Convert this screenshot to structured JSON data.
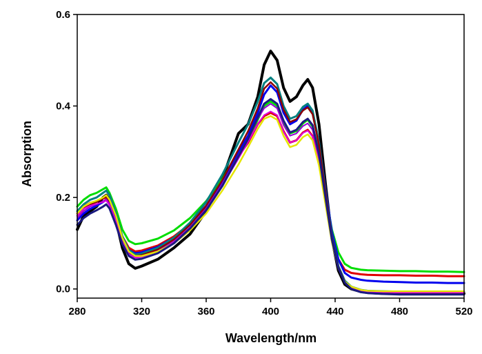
{
  "chart_data": {
    "type": "line",
    "title": "",
    "xlabel": "Wavelength/nm",
    "ylabel": "Absorption",
    "xlim": [
      280,
      520
    ],
    "ylim": [
      -0.02,
      0.6
    ],
    "xticks": [
      280,
      320,
      360,
      400,
      440,
      480,
      520
    ],
    "xtick_labels": [
      "280",
      "320",
      "360",
      "400",
      "440",
      "480",
      "520"
    ],
    "yticks": [
      0.0,
      0.2,
      0.4,
      0.6
    ],
    "ytick_labels": [
      "0.0",
      "0.2",
      "0.4",
      "0.6"
    ],
    "grid": false,
    "legend": "none",
    "x": [
      280,
      284,
      288,
      292,
      296,
      298,
      300,
      304,
      308,
      312,
      316,
      320,
      330,
      340,
      350,
      360,
      370,
      380,
      386,
      392,
      396,
      400,
      404,
      408,
      412,
      416,
      420,
      423,
      426,
      430,
      434,
      438,
      442,
      446,
      450,
      456,
      460,
      470,
      480,
      490,
      500,
      510,
      520
    ],
    "series": [
      {
        "color": "#000000",
        "values": [
          0.13,
          0.16,
          0.17,
          0.18,
          0.2,
          0.205,
          0.195,
          0.15,
          0.09,
          0.055,
          0.045,
          0.05,
          0.065,
          0.09,
          0.12,
          0.17,
          0.24,
          0.34,
          0.36,
          0.42,
          0.49,
          0.52,
          0.5,
          0.44,
          0.41,
          0.42,
          0.445,
          0.458,
          0.44,
          0.36,
          0.23,
          0.11,
          0.04,
          0.01,
          0.0,
          -0.006,
          -0.008,
          -0.01,
          -0.01,
          -0.01,
          -0.01,
          -0.01,
          -0.01
        ]
      },
      {
        "color": "#00dd00",
        "values": [
          0.18,
          0.195,
          0.205,
          0.21,
          0.218,
          0.222,
          0.21,
          0.175,
          0.13,
          0.105,
          0.098,
          0.1,
          0.11,
          0.128,
          0.155,
          0.192,
          0.24,
          0.3,
          0.33,
          0.37,
          0.4,
          0.41,
          0.4,
          0.365,
          0.34,
          0.345,
          0.362,
          0.37,
          0.355,
          0.3,
          0.21,
          0.13,
          0.08,
          0.055,
          0.046,
          0.042,
          0.041,
          0.04,
          0.039,
          0.039,
          0.038,
          0.038,
          0.037
        ]
      },
      {
        "color": "#e00000",
        "values": [
          0.165,
          0.18,
          0.188,
          0.192,
          0.198,
          0.2,
          0.192,
          0.16,
          0.115,
          0.09,
          0.082,
          0.084,
          0.095,
          0.115,
          0.142,
          0.18,
          0.228,
          0.29,
          0.32,
          0.36,
          0.378,
          0.385,
          0.378,
          0.345,
          0.32,
          0.325,
          0.342,
          0.348,
          0.334,
          0.28,
          0.195,
          0.115,
          0.065,
          0.042,
          0.035,
          0.032,
          0.031,
          0.03,
          0.03,
          0.029,
          0.029,
          0.028,
          0.028
        ]
      },
      {
        "color": "#0000ee",
        "values": [
          0.15,
          0.165,
          0.175,
          0.182,
          0.19,
          0.195,
          0.185,
          0.15,
          0.11,
          0.085,
          0.078,
          0.08,
          0.092,
          0.112,
          0.142,
          0.182,
          0.235,
          0.3,
          0.335,
          0.385,
          0.425,
          0.445,
          0.43,
          0.385,
          0.36,
          0.368,
          0.392,
          0.4,
          0.385,
          0.32,
          0.22,
          0.125,
          0.065,
          0.035,
          0.025,
          0.02,
          0.018,
          0.016,
          0.015,
          0.014,
          0.014,
          0.013,
          0.013
        ]
      },
      {
        "color": "#008080",
        "values": [
          0.17,
          0.185,
          0.195,
          0.2,
          0.21,
          0.215,
          0.205,
          0.165,
          0.115,
          0.085,
          0.075,
          0.077,
          0.09,
          0.112,
          0.145,
          0.19,
          0.25,
          0.32,
          0.36,
          0.41,
          0.45,
          0.462,
          0.448,
          0.4,
          0.372,
          0.378,
          0.398,
          0.405,
          0.39,
          0.32,
          0.215,
          0.115,
          0.05,
          0.018,
          0.005,
          -0.002,
          -0.004,
          -0.005,
          -0.006,
          -0.006,
          -0.006,
          -0.006,
          -0.006
        ]
      },
      {
        "color": "#8b0000",
        "values": [
          0.16,
          0.175,
          0.185,
          0.19,
          0.198,
          0.202,
          0.192,
          0.155,
          0.108,
          0.08,
          0.072,
          0.074,
          0.086,
          0.108,
          0.14,
          0.182,
          0.238,
          0.305,
          0.345,
          0.395,
          0.438,
          0.452,
          0.438,
          0.392,
          0.365,
          0.371,
          0.39,
          0.397,
          0.382,
          0.315,
          0.212,
          0.113,
          0.048,
          0.016,
          0.003,
          -0.004,
          -0.006,
          -0.007,
          -0.008,
          -0.008,
          -0.008,
          -0.008,
          -0.008
        ]
      },
      {
        "color": "#9400d3",
        "values": [
          0.155,
          0.17,
          0.18,
          0.185,
          0.192,
          0.196,
          0.186,
          0.15,
          0.104,
          0.077,
          0.069,
          0.071,
          0.083,
          0.104,
          0.135,
          0.176,
          0.23,
          0.292,
          0.33,
          0.372,
          0.395,
          0.405,
          0.395,
          0.358,
          0.335,
          0.34,
          0.356,
          0.362,
          0.348,
          0.288,
          0.196,
          0.106,
          0.046,
          0.015,
          0.003,
          -0.004,
          -0.006,
          -0.007,
          -0.008,
          -0.008,
          -0.008,
          -0.008,
          -0.008
        ]
      },
      {
        "color": "#dd00dd",
        "values": [
          0.16,
          0.175,
          0.182,
          0.186,
          0.19,
          0.193,
          0.183,
          0.148,
          0.102,
          0.075,
          0.068,
          0.07,
          0.082,
          0.102,
          0.133,
          0.173,
          0.226,
          0.285,
          0.322,
          0.36,
          0.38,
          0.388,
          0.38,
          0.344,
          0.32,
          0.325,
          0.341,
          0.346,
          0.333,
          0.276,
          0.188,
          0.102,
          0.044,
          0.014,
          0.002,
          -0.004,
          -0.006,
          -0.007,
          -0.008,
          -0.008,
          -0.008,
          -0.008,
          -0.008
        ]
      },
      {
        "color": "#e5e500",
        "values": [
          0.165,
          0.18,
          0.188,
          0.193,
          0.2,
          0.205,
          0.195,
          0.16,
          0.112,
          0.082,
          0.072,
          0.072,
          0.082,
          0.1,
          0.128,
          0.165,
          0.215,
          0.272,
          0.31,
          0.35,
          0.372,
          0.378,
          0.37,
          0.335,
          0.31,
          0.315,
          0.332,
          0.338,
          0.325,
          0.27,
          0.185,
          0.102,
          0.045,
          0.016,
          0.005,
          -0.002,
          -0.004,
          -0.005,
          -0.005,
          -0.005,
          -0.005,
          -0.005,
          -0.005
        ]
      },
      {
        "color": "#1a1a80",
        "values": [
          0.14,
          0.155,
          0.165,
          0.172,
          0.18,
          0.185,
          0.176,
          0.14,
          0.098,
          0.072,
          0.064,
          0.066,
          0.078,
          0.1,
          0.132,
          0.172,
          0.225,
          0.29,
          0.328,
          0.375,
          0.405,
          0.415,
          0.405,
          0.368,
          0.342,
          0.348,
          0.365,
          0.372,
          0.358,
          0.295,
          0.2,
          0.108,
          0.046,
          0.014,
          0.0,
          -0.007,
          -0.009,
          -0.011,
          -0.012,
          -0.012,
          -0.012,
          -0.012,
          -0.012
        ]
      }
    ]
  }
}
